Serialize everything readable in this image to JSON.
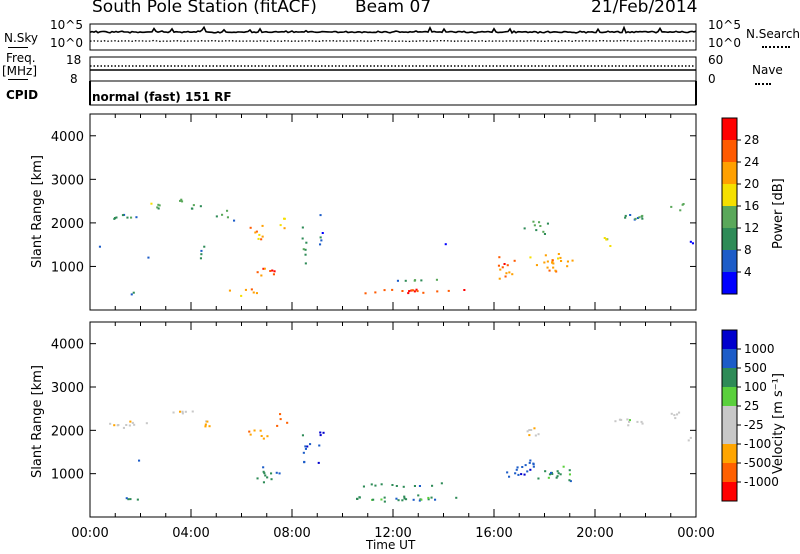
{
  "header": {
    "station": "South Pole Station (fitACF)",
    "beam": "Beam 07",
    "date": "21/Feb/2014"
  },
  "params": {
    "nsky_label": "N.Sky",
    "nsky_ticks": [
      "10^5",
      "10^0"
    ],
    "nsearch_label": "N.Search",
    "nsearch_ticks": [
      "10^5",
      "10^0"
    ],
    "freq_label": "Freq.",
    "freq_unit": "[MHz]",
    "freq_ticks": [
      "18",
      "8"
    ],
    "nave_label": "Nave",
    "nave_ticks": [
      "60",
      "0"
    ],
    "cpid_label": "CPID",
    "cpid_text": "normal (fast) 151 RF"
  },
  "colors": {
    "power_scale": [
      "#0000ff",
      "#1c5cc8",
      "#2e8b57",
      "#5aa85a",
      "#f5e000",
      "#ffa000",
      "#ff5a00",
      "#ff0000"
    ],
    "velocity_scale": [
      "#ff0000",
      "#ff6000",
      "#ffa500",
      "#c8c8c8",
      "#c8c8c8",
      "#5ad03c",
      "#2e8b57",
      "#1c5cc8",
      "#0000cd"
    ]
  },
  "chart_data": [
    {
      "type": "heatmap",
      "name": "power",
      "ylabel": "Slant Range [km]",
      "yticks": [
        "4000",
        "3000",
        "2000",
        "1000"
      ],
      "ylim": [
        0,
        4500
      ],
      "colorbar_label": "Power [dB]",
      "colorbar_ticks": [
        "28",
        "24",
        "20",
        "16",
        "12",
        "8",
        "4"
      ],
      "clim": [
        0,
        32
      ],
      "scatter_blobs": [
        {
          "t": 1.2,
          "r": 2150,
          "dt": 2.0,
          "dr": 250,
          "v": 10,
          "d": 0.75
        },
        {
          "t": 2.5,
          "r": 2450,
          "dt": 1.2,
          "dr": 250,
          "v": 14,
          "d": 0.8
        },
        {
          "t": 3.6,
          "r": 2550,
          "dt": 0.9,
          "dr": 200,
          "v": 12,
          "d": 0.8
        },
        {
          "t": 4.1,
          "r": 2300,
          "dt": 0.6,
          "dr": 500,
          "v": 10,
          "d": 0.6
        },
        {
          "t": 5.3,
          "r": 2200,
          "dt": 1.5,
          "dr": 300,
          "v": 12,
          "d": 0.5
        },
        {
          "t": 6.6,
          "r": 1750,
          "dt": 1.1,
          "dr": 500,
          "v": 22,
          "d": 0.7
        },
        {
          "t": 7.6,
          "r": 2050,
          "dt": 0.6,
          "dr": 600,
          "v": 18,
          "d": 0.55
        },
        {
          "t": 7.0,
          "r": 900,
          "dt": 1.6,
          "dr": 350,
          "v": 26,
          "d": 0.7
        },
        {
          "t": 6.0,
          "r": 450,
          "dt": 2.2,
          "dr": 250,
          "v": 22,
          "d": 0.55
        },
        {
          "t": 2.2,
          "r": 1200,
          "dt": 0.5,
          "dr": 200,
          "v": 6,
          "d": 0.5
        },
        {
          "t": 1.4,
          "r": 400,
          "dt": 1.1,
          "dr": 150,
          "v": 10,
          "d": 0.7
        },
        {
          "t": 0.3,
          "r": 1500,
          "dt": 0.5,
          "dr": 200,
          "v": 6,
          "d": 0.5
        },
        {
          "t": 4.5,
          "r": 1400,
          "dt": 0.7,
          "dr": 700,
          "v": 10,
          "d": 0.45
        },
        {
          "t": 8.4,
          "r": 1400,
          "dt": 0.5,
          "dr": 1500,
          "v": 10,
          "d": 0.45
        },
        {
          "t": 9.1,
          "r": 1700,
          "dt": 0.3,
          "dr": 1500,
          "v": 8,
          "d": 0.5
        },
        {
          "t": 12.6,
          "r": 450,
          "dt": 5.7,
          "dr": 160,
          "v": 28,
          "d": 0.95
        },
        {
          "t": 12.6,
          "r": 720,
          "dt": 5.2,
          "dr": 130,
          "v": 12,
          "d": 0.45
        },
        {
          "t": 14.0,
          "r": 1500,
          "dt": 0.3,
          "dr": 600,
          "v": 6,
          "d": 0.3
        },
        {
          "t": 16.5,
          "r": 1000,
          "dt": 1.3,
          "dr": 600,
          "v": 24,
          "d": 0.75
        },
        {
          "t": 18.3,
          "r": 1100,
          "dt": 2.3,
          "dr": 650,
          "v": 22,
          "d": 0.75
        },
        {
          "t": 17.6,
          "r": 1900,
          "dt": 1.6,
          "dr": 500,
          "v": 12,
          "d": 0.55
        },
        {
          "t": 20.4,
          "r": 1600,
          "dt": 1.0,
          "dr": 400,
          "v": 16,
          "d": 0.6
        },
        {
          "t": 21.6,
          "r": 2150,
          "dt": 2.3,
          "dr": 350,
          "v": 10,
          "d": 0.65
        },
        {
          "t": 23.3,
          "r": 2400,
          "dt": 0.8,
          "dr": 300,
          "v": 14,
          "d": 0.75
        },
        {
          "t": 23.8,
          "r": 1600,
          "dt": 0.4,
          "dr": 400,
          "v": 6,
          "d": 0.5
        }
      ]
    },
    {
      "type": "heatmap",
      "name": "velocity",
      "ylabel": "Slant Range [km]",
      "yticks": [
        "4000",
        "3000",
        "2000",
        "1000"
      ],
      "ylim": [
        0,
        4500
      ],
      "colorbar_label": "Velocity [m s⁻¹]",
      "colorbar_ticks": [
        "1000",
        "500",
        "100",
        "25",
        "-25",
        "-100",
        "-500",
        "-1000"
      ],
      "xlabel": "Time UT",
      "xticks": [
        "00:00",
        "04:00",
        "08:00",
        "12:00",
        "16:00",
        "20:00",
        "00:00"
      ],
      "xlim": [
        0,
        24
      ],
      "scatter_blobs": [
        {
          "t": 1.6,
          "r": 2150,
          "dt": 2.6,
          "dr": 250,
          "v": 3,
          "d": 0.85
        },
        {
          "t": 3.5,
          "r": 2450,
          "dt": 1.5,
          "dr": 250,
          "v": 3,
          "d": 0.8
        },
        {
          "t": 4.5,
          "r": 2200,
          "dt": 0.8,
          "dr": 600,
          "v": 2,
          "d": 0.5
        },
        {
          "t": 6.5,
          "r": 1900,
          "dt": 1.2,
          "dr": 500,
          "v": 2,
          "d": 0.55
        },
        {
          "t": 7.5,
          "r": 2200,
          "dt": 0.8,
          "dr": 500,
          "v": 1,
          "d": 0.45
        },
        {
          "t": 7.1,
          "r": 1000,
          "dt": 1.6,
          "dr": 600,
          "v": 6,
          "d": 0.55
        },
        {
          "t": 1.4,
          "r": 450,
          "dt": 1.5,
          "dr": 180,
          "v": 6,
          "d": 0.8
        },
        {
          "t": 2.0,
          "r": 1250,
          "dt": 0.5,
          "dr": 250,
          "v": 7,
          "d": 0.5
        },
        {
          "t": 8.5,
          "r": 1500,
          "dt": 0.6,
          "dr": 1400,
          "v": 7,
          "d": 0.45
        },
        {
          "t": 9.1,
          "r": 1700,
          "dt": 0.35,
          "dr": 1500,
          "v": 8,
          "d": 0.5
        },
        {
          "t": 12.6,
          "r": 450,
          "dt": 6.0,
          "dr": 220,
          "v": 6,
          "d": 0.95
        },
        {
          "t": 12.6,
          "r": 750,
          "dt": 5.5,
          "dr": 180,
          "v": 6,
          "d": 0.55
        },
        {
          "t": 17.0,
          "r": 1100,
          "dt": 2.0,
          "dr": 700,
          "v": 7,
          "d": 0.6
        },
        {
          "t": 18.6,
          "r": 1000,
          "dt": 2.4,
          "dr": 600,
          "v": 6,
          "d": 0.6
        },
        {
          "t": 17.6,
          "r": 1900,
          "dt": 1.4,
          "dr": 500,
          "v": 3,
          "d": 0.5
        },
        {
          "t": 21.4,
          "r": 2200,
          "dt": 2.3,
          "dr": 350,
          "v": 4,
          "d": 0.6
        },
        {
          "t": 23.2,
          "r": 2400,
          "dt": 0.9,
          "dr": 300,
          "v": 3,
          "d": 0.85
        },
        {
          "t": 23.7,
          "r": 1800,
          "dt": 0.4,
          "dr": 500,
          "v": 5,
          "d": 0.5
        }
      ]
    }
  ]
}
